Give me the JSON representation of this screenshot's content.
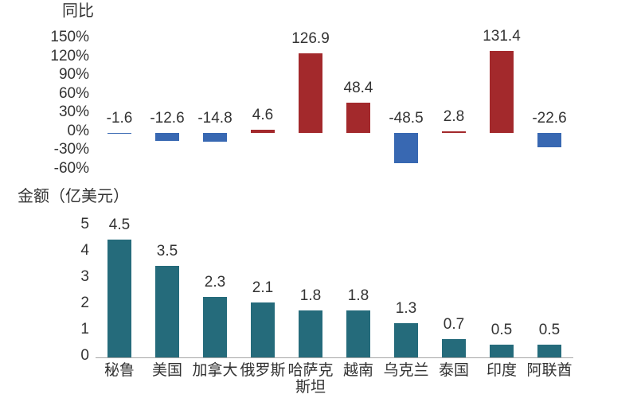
{
  "chart_data": {
    "type": "bar",
    "categories": [
      "秘鲁",
      "美国",
      "加拿大",
      "俄罗斯",
      "哈萨克斯坦",
      "越南",
      "乌克兰",
      "泰国",
      "印度",
      "阿联酋"
    ],
    "panels": [
      {
        "ylabel": "同比",
        "values": [
          -1.6,
          -12.6,
          -14.8,
          4.6,
          126.9,
          48.4,
          -48.5,
          2.8,
          131.4,
          -22.6
        ],
        "yticks": [
          150,
          120,
          90,
          60,
          30,
          0,
          -30,
          -60
        ],
        "ytick_labels": [
          "150%",
          "120%",
          "90%",
          "60%",
          "30%",
          "0%",
          "-30%",
          "-60%"
        ],
        "ylim": [
          -60,
          150
        ],
        "positive_color": "#a3292c",
        "negative_color": "#3868b2",
        "grid": false
      },
      {
        "ylabel": "金额（亿美元）",
        "values": [
          4.5,
          3.5,
          2.3,
          2.1,
          1.8,
          1.8,
          1.3,
          0.7,
          0.5,
          0.5
        ],
        "yticks": [
          5,
          4,
          3,
          2,
          1,
          0
        ],
        "ytick_labels": [
          "5",
          "4",
          "3",
          "2",
          "1",
          "0"
        ],
        "ylim": [
          0,
          5
        ],
        "bar_color": "#256b7b",
        "axis_color": "#a6a6a6",
        "grid": false
      }
    ]
  }
}
